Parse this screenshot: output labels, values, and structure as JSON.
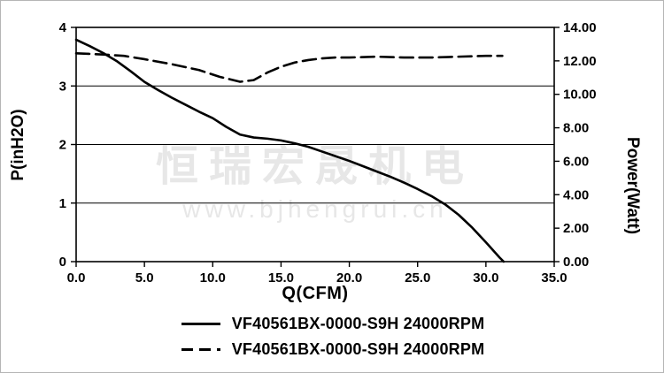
{
  "watermark": {
    "line1": "恒瑞宏晟机电",
    "line2": "www.bjhengrui.cn"
  },
  "chart_data": {
    "type": "line",
    "title": "",
    "xlabel": "Q(CFM)",
    "ylabel_left": "P(inH2O)",
    "ylabel_right": "Power(Watt)",
    "xlim": [
      0,
      35
    ],
    "ylim_left": [
      0,
      4
    ],
    "ylim_right": [
      0,
      14
    ],
    "x_ticks": [
      "0.0",
      "5.0",
      "10.0",
      "15.0",
      "20.0",
      "25.0",
      "30.0",
      "35.0"
    ],
    "y_ticks_left": [
      "0",
      "1",
      "2",
      "3",
      "4"
    ],
    "y_ticks_right": [
      "0.00",
      "2.00",
      "4.00",
      "6.00",
      "8.00",
      "10.00",
      "12.00",
      "14.00"
    ],
    "gridlines_left": [
      1,
      2,
      3
    ],
    "grid": "horizontal-only",
    "legend_position": "bottom",
    "line_color": "#000000",
    "series": [
      {
        "name": "VF40561BX-0000-S9H 24000RPM",
        "style": "solid",
        "axis": "left",
        "unit": "inH2O",
        "x": [
          0,
          1,
          2,
          3,
          4,
          5,
          6,
          7,
          8,
          9,
          10,
          11,
          12,
          13,
          14,
          15,
          16,
          17,
          18,
          19,
          20,
          21,
          22,
          23,
          24,
          25,
          26,
          27,
          28,
          29,
          30,
          31,
          31.3
        ],
        "y": [
          3.79,
          3.68,
          3.56,
          3.42,
          3.25,
          3.07,
          2.93,
          2.8,
          2.68,
          2.56,
          2.45,
          2.3,
          2.17,
          2.12,
          2.1,
          2.07,
          2.02,
          1.96,
          1.88,
          1.8,
          1.72,
          1.63,
          1.54,
          1.45,
          1.35,
          1.24,
          1.12,
          0.98,
          0.8,
          0.58,
          0.33,
          0.07,
          0
        ]
      },
      {
        "name": "VF40561BX-0000-S9H 24000RPM",
        "style": "dashed",
        "axis": "right",
        "unit": "Watt",
        "x": [
          0,
          2,
          3.5,
          5,
          7,
          9,
          10.5,
          12,
          13,
          14,
          15,
          16,
          17,
          18,
          19,
          20,
          22,
          24,
          26,
          28,
          30,
          31.2
        ],
        "y": [
          12.45,
          12.38,
          12.3,
          12.1,
          11.8,
          11.45,
          11.05,
          10.75,
          10.85,
          11.3,
          11.65,
          11.9,
          12.05,
          12.15,
          12.2,
          12.2,
          12.25,
          12.2,
          12.2,
          12.25,
          12.3,
          12.3
        ]
      }
    ]
  }
}
